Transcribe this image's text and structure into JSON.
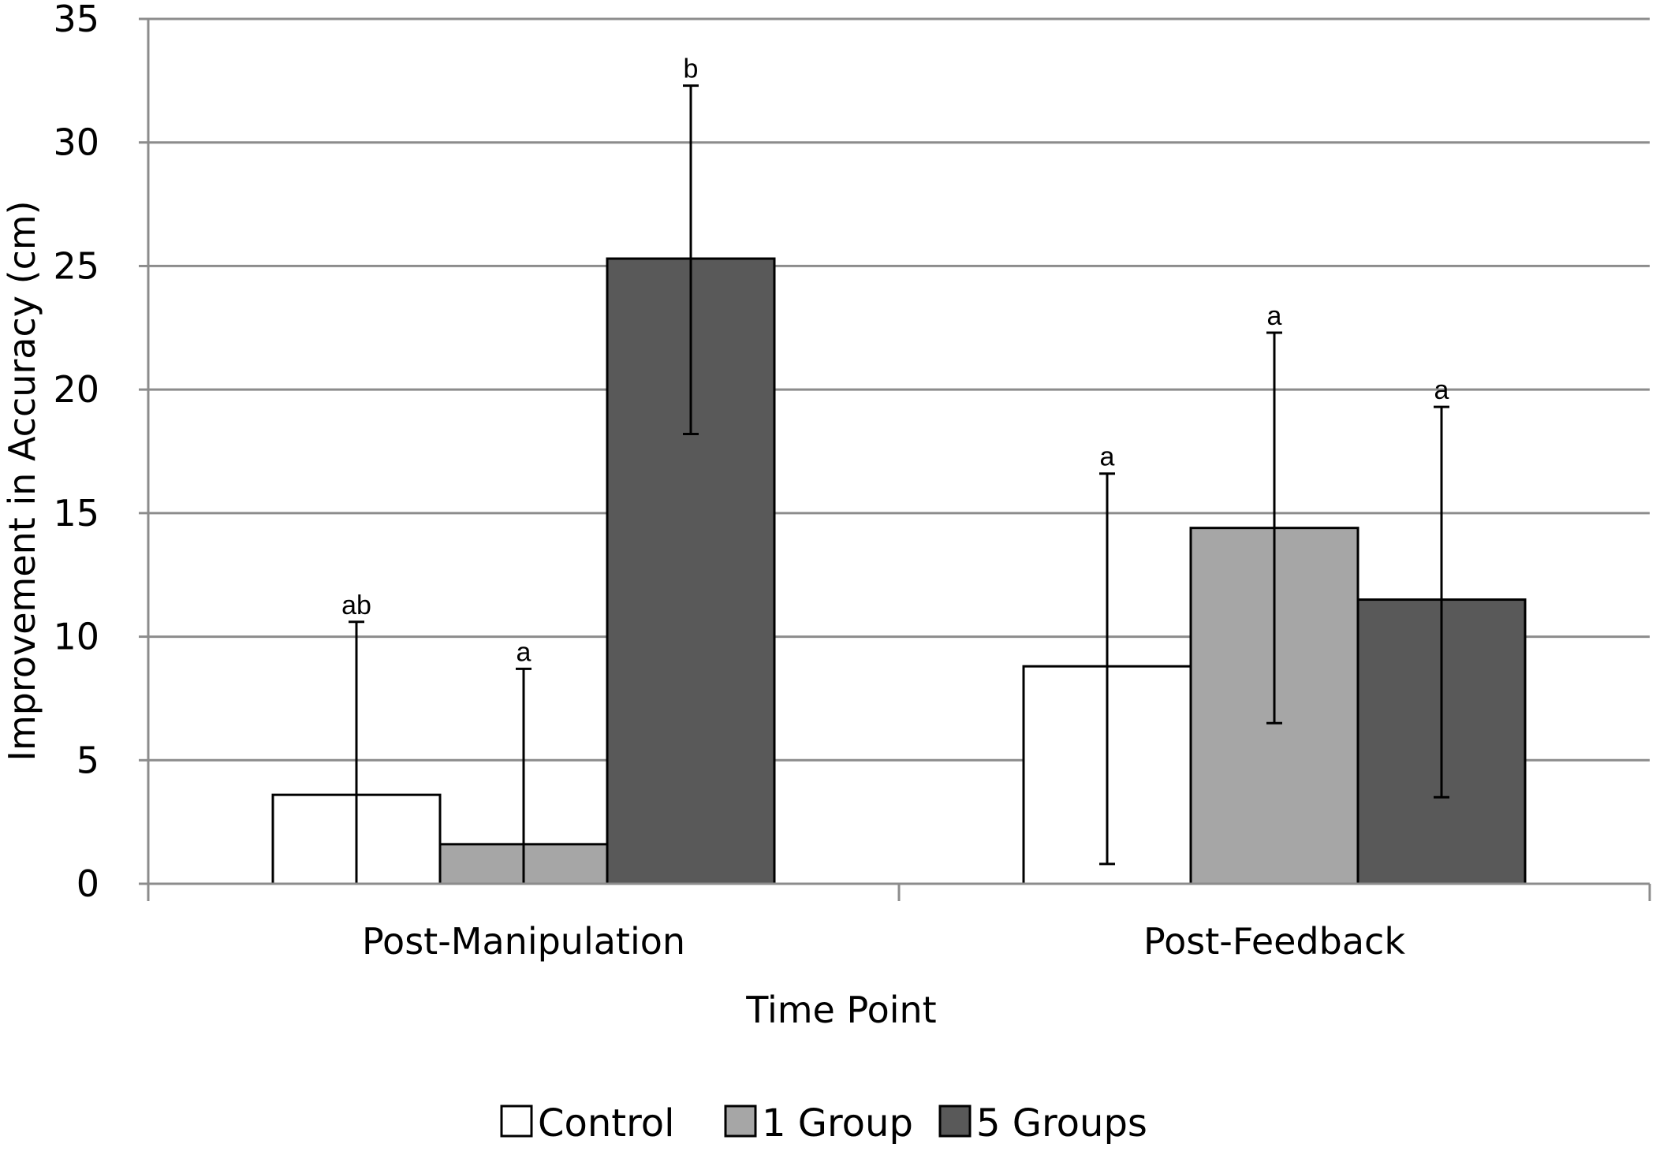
{
  "chart_data": {
    "type": "bar",
    "title": "",
    "xlabel": "Time Point",
    "ylabel": "Improvement in Accuracy (cm)",
    "ylim": [
      0,
      35
    ],
    "yticks": [
      0,
      5,
      10,
      15,
      20,
      25,
      30,
      35
    ],
    "grid": true,
    "legend_position": "bottom",
    "categories": [
      "Post-Manipulation",
      "Post-Feedback"
    ],
    "series": [
      {
        "name": "Control",
        "color": "#ffffff",
        "values": [
          3.6,
          8.8
        ],
        "error_low": [
          0,
          0.8
        ],
        "error_high": [
          10.6,
          16.6
        ],
        "sig_labels": [
          "ab",
          "a"
        ]
      },
      {
        "name": "1 Group",
        "color": "#a6a6a6",
        "values": [
          1.6,
          14.4
        ],
        "error_low": [
          0,
          6.5
        ],
        "error_high": [
          8.7,
          22.3
        ],
        "sig_labels": [
          "a",
          "a"
        ]
      },
      {
        "name": "5 Groups",
        "color": "#595959",
        "values": [
          25.3,
          11.5
        ],
        "error_low": [
          18.2,
          3.5
        ],
        "error_high": [
          32.3,
          19.3
        ],
        "sig_labels": [
          "b",
          "a"
        ]
      }
    ]
  }
}
